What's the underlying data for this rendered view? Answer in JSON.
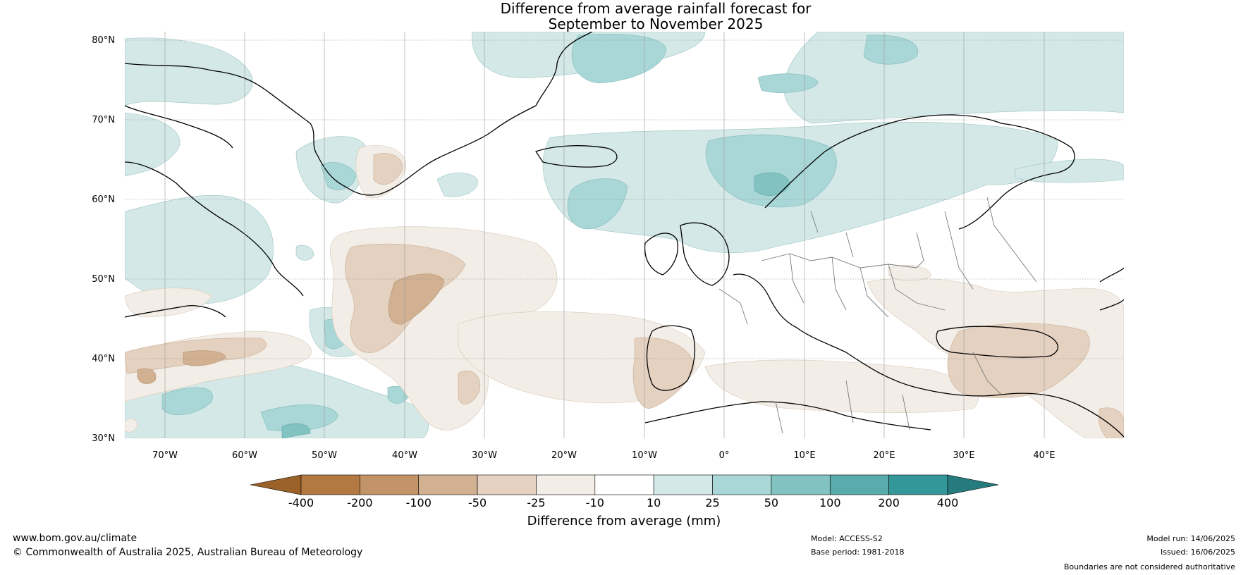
{
  "title": {
    "line1": "Difference from average rainfall forecast for",
    "line2": "September to November 2025"
  },
  "lat_labels": [
    "80°N",
    "70°N",
    "60°N",
    "50°N",
    "40°N",
    "30°N"
  ],
  "lon_labels": [
    "70°W",
    "60°W",
    "50°W",
    "40°W",
    "30°W",
    "20°W",
    "10°W",
    "0°",
    "10°E",
    "20°E",
    "30°E",
    "40°E"
  ],
  "colorbar": {
    "ticks": [
      "-400",
      "-200",
      "-100",
      "-50",
      "-25",
      "-10",
      "10",
      "25",
      "50",
      "100",
      "200",
      "400"
    ],
    "colors": [
      "#9a6228",
      "#b27942",
      "#c29468",
      "#d2b192",
      "#e4d1c0",
      "#f2ede6",
      "#ffffff",
      "#d3e8e7",
      "#a9d6d6",
      "#82c2c1",
      "#5aabab",
      "#33979a",
      "#257b7d"
    ],
    "label": "Difference from average (mm)"
  },
  "footer": {
    "website": "www.bom.gov.au/climate",
    "copyright": "© Commonwealth of Australia 2025, Australian Bureau of Meteorology",
    "model": "Model: ACCESS-S2",
    "base_period": "Base period: 1981-2018",
    "model_run": "Model run: 14/06/2025",
    "issued": "Issued: 16/06/2025",
    "disclaimer": "Boundaries are not considered authoritative"
  }
}
